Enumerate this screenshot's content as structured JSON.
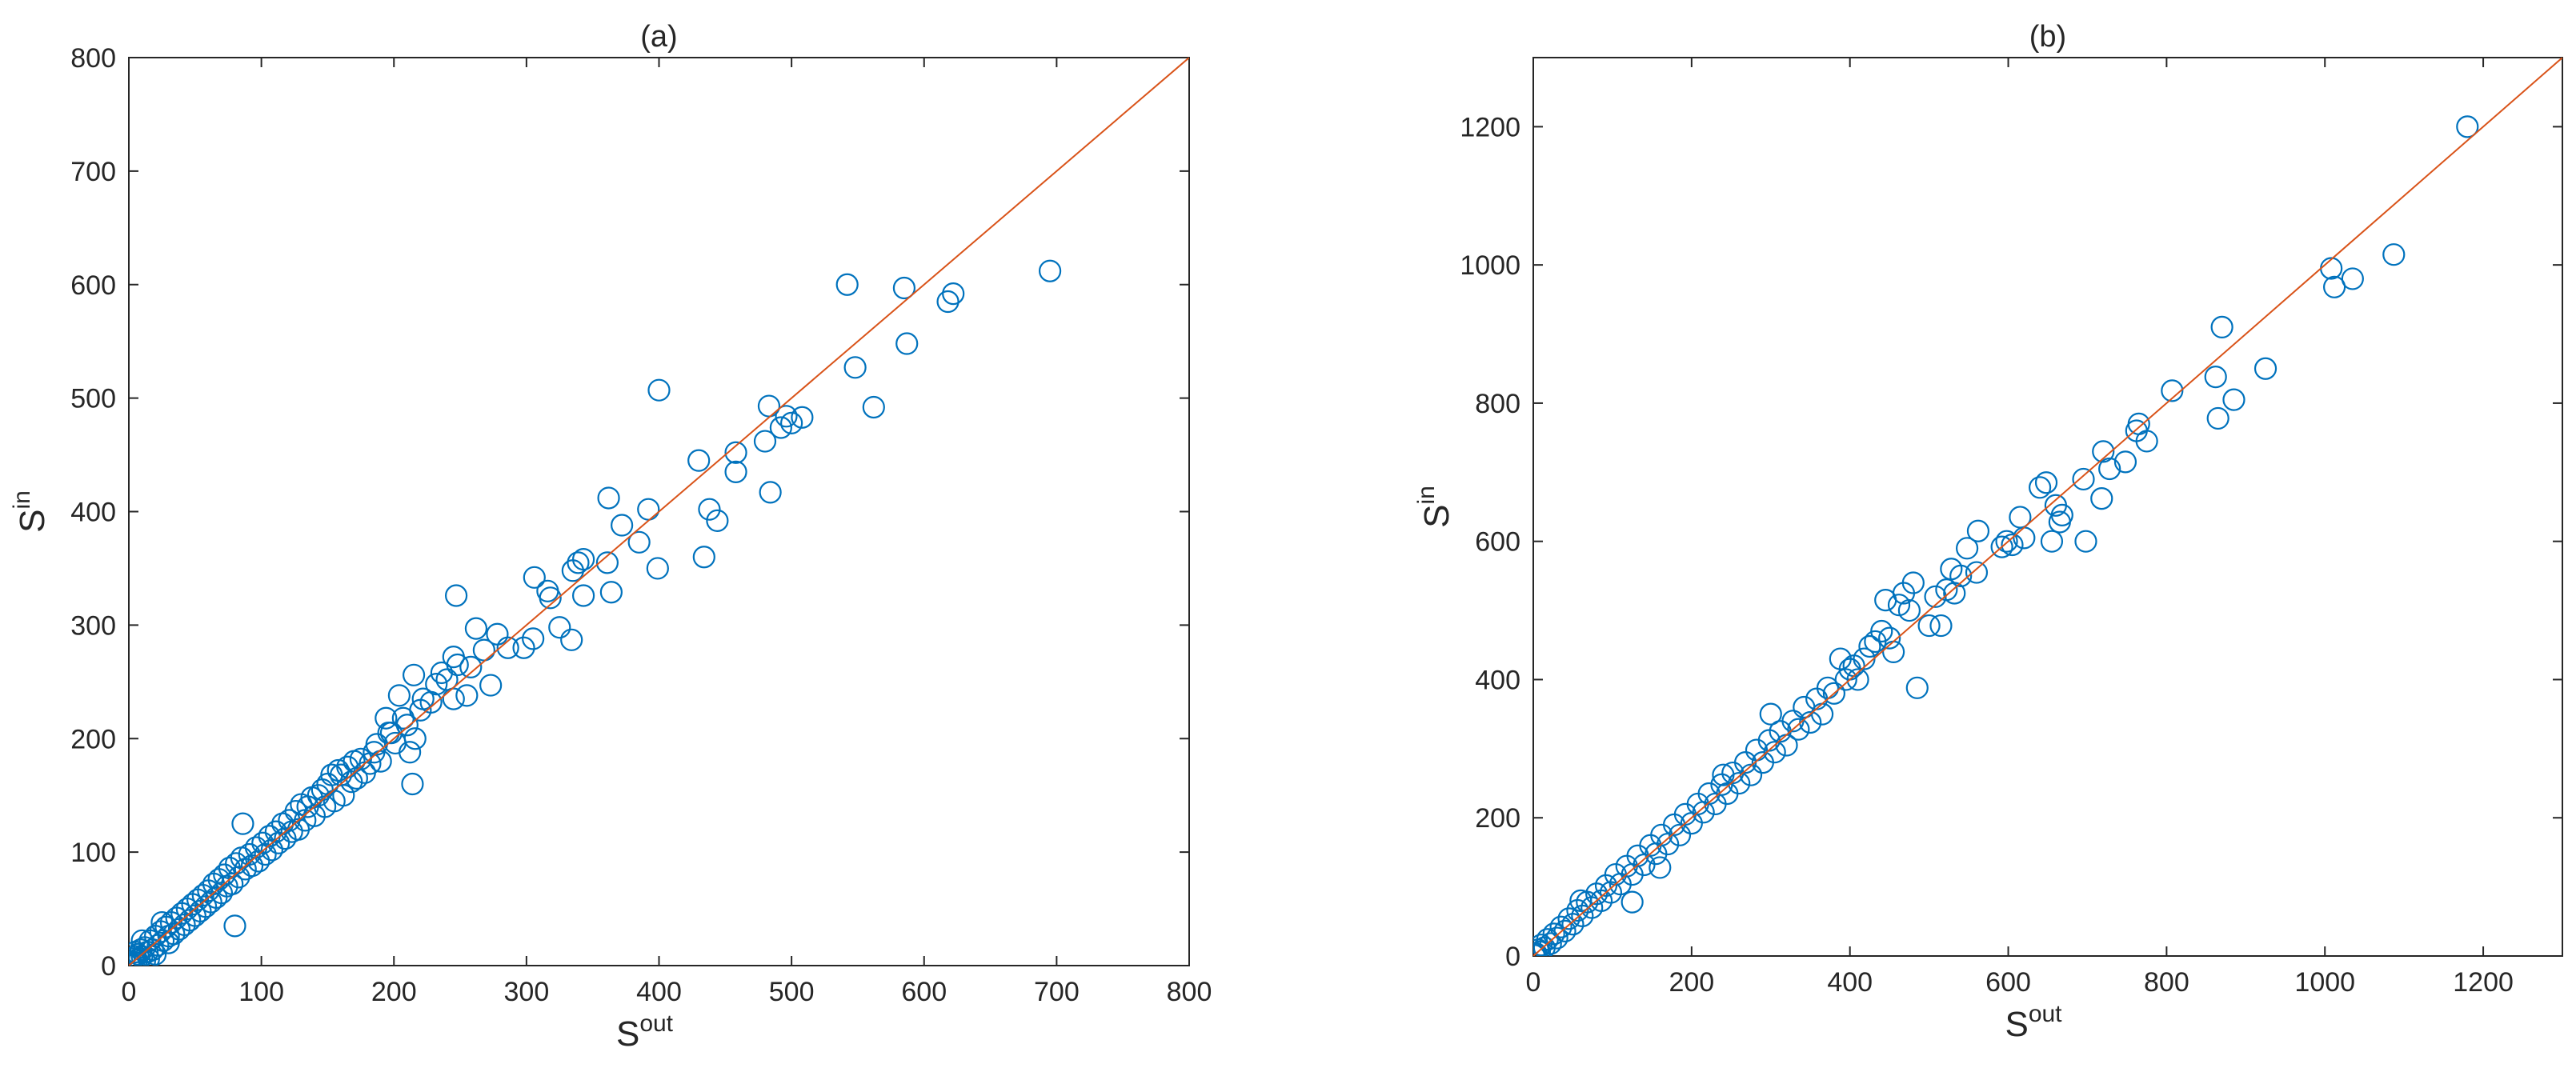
{
  "chart_data": [
    {
      "id": "a",
      "type": "scatter",
      "title": "(a)",
      "xlabel": {
        "base": "S",
        "sup": "out"
      },
      "ylabel": {
        "base": "S",
        "sup": "in"
      },
      "xlim": [
        0,
        800
      ],
      "ylim": [
        0,
        800
      ],
      "xticks": [
        0,
        100,
        200,
        300,
        400,
        500,
        600,
        700,
        800
      ],
      "yticks": [
        0,
        100,
        200,
        300,
        400,
        500,
        600,
        700,
        800
      ],
      "grid": false,
      "marker": "open-circle",
      "marker_color": "#0072BD",
      "reference_line": {
        "from": [
          0,
          0
        ],
        "to": [
          800,
          800
        ],
        "color": "#D95319"
      },
      "points": [
        [
          695,
          612
        ],
        [
          622,
          592
        ],
        [
          618,
          585
        ],
        [
          585,
          597
        ],
        [
          587,
          548
        ],
        [
          562,
          492
        ],
        [
          548,
          527
        ],
        [
          542,
          600
        ],
        [
          508,
          483
        ],
        [
          500,
          478
        ],
        [
          496,
          484
        ],
        [
          492,
          474
        ],
        [
          484,
          417
        ],
        [
          483,
          493
        ],
        [
          480,
          462
        ],
        [
          458,
          452
        ],
        [
          458,
          435
        ],
        [
          444,
          392
        ],
        [
          438,
          402
        ],
        [
          434,
          360
        ],
        [
          430,
          445
        ],
        [
          400,
          507
        ],
        [
          399,
          350
        ],
        [
          392,
          402
        ],
        [
          385,
          373
        ],
        [
          372,
          388
        ],
        [
          364,
          329
        ],
        [
          362,
          412
        ],
        [
          361,
          355
        ],
        [
          343,
          358
        ],
        [
          343,
          326
        ],
        [
          339,
          355
        ],
        [
          335,
          348
        ],
        [
          334,
          287
        ],
        [
          325,
          298
        ],
        [
          318,
          324
        ],
        [
          316,
          330
        ],
        [
          306,
          342
        ],
        [
          305,
          288
        ],
        [
          298,
          280
        ],
        [
          286,
          280
        ],
        [
          278,
          292
        ],
        [
          273,
          247
        ],
        [
          268,
          278
        ],
        [
          262,
          297
        ],
        [
          258,
          263
        ],
        [
          255,
          238
        ],
        [
          248,
          265
        ],
        [
          247,
          326
        ],
        [
          245,
          235
        ],
        [
          245,
          272
        ],
        [
          240,
          252
        ],
        [
          236,
          258
        ],
        [
          232,
          248
        ],
        [
          228,
          232
        ],
        [
          222,
          235
        ],
        [
          220,
          225
        ],
        [
          216,
          200
        ],
        [
          215,
          256
        ],
        [
          214,
          160
        ],
        [
          212,
          188
        ],
        [
          210,
          212
        ],
        [
          207,
          218
        ],
        [
          204,
          238
        ],
        [
          201,
          196
        ],
        [
          198,
          205
        ],
        [
          196,
          205
        ],
        [
          194,
          218
        ],
        [
          190,
          180
        ],
        [
          187,
          195
        ],
        [
          185,
          188
        ],
        [
          182,
          178
        ],
        [
          178,
          170
        ],
        [
          175,
          182
        ],
        [
          172,
          165
        ],
        [
          170,
          180
        ],
        [
          168,
          162
        ],
        [
          165,
          175
        ],
        [
          162,
          150
        ],
        [
          160,
          168
        ],
        [
          158,
          172
        ],
        [
          155,
          145
        ],
        [
          153,
          168
        ],
        [
          150,
          160
        ],
        [
          148,
          140
        ],
        [
          146,
          155
        ],
        [
          143,
          150
        ],
        [
          140,
          132
        ],
        [
          138,
          148
        ],
        [
          135,
          140
        ],
        [
          133,
          128
        ],
        [
          130,
          142
        ],
        [
          128,
          120
        ],
        [
          126,
          136
        ],
        [
          123,
          118
        ],
        [
          121,
          128
        ],
        [
          118,
          112
        ],
        [
          116,
          125
        ],
        [
          113,
          108
        ],
        [
          111,
          118
        ],
        [
          108,
          102
        ],
        [
          106,
          114
        ],
        [
          103,
          98
        ],
        [
          101,
          108
        ],
        [
          98,
          92
        ],
        [
          96,
          104
        ],
        [
          93,
          88
        ],
        [
          91,
          98
        ],
        [
          88,
          85
        ],
        [
          86,
          125
        ],
        [
          85,
          95
        ],
        [
          83,
          78
        ],
        [
          81,
          90
        ],
        [
          80,
          35
        ],
        [
          78,
          72
        ],
        [
          76,
          86
        ],
        [
          74,
          70
        ],
        [
          72,
          80
        ],
        [
          70,
          64
        ],
        [
          68,
          76
        ],
        [
          66,
          60
        ],
        [
          64,
          72
        ],
        [
          62,
          56
        ],
        [
          60,
          66
        ],
        [
          58,
          52
        ],
        [
          56,
          62
        ],
        [
          54,
          48
        ],
        [
          52,
          58
        ],
        [
          50,
          44
        ],
        [
          48,
          54
        ],
        [
          46,
          40
        ],
        [
          44,
          50
        ],
        [
          42,
          36
        ],
        [
          40,
          46
        ],
        [
          38,
          32
        ],
        [
          36,
          42
        ],
        [
          34,
          28
        ],
        [
          32,
          38
        ],
        [
          30,
          26
        ],
        [
          28,
          34
        ],
        [
          26,
          22
        ],
        [
          24,
          30
        ],
        [
          22,
          18
        ],
        [
          20,
          26
        ],
        [
          18,
          14
        ],
        [
          16,
          22
        ],
        [
          14,
          12
        ],
        [
          12,
          16
        ],
        [
          10,
          8
        ],
        [
          9,
          14
        ],
        [
          8,
          6
        ],
        [
          7,
          10
        ],
        [
          6,
          5
        ],
        [
          5,
          8
        ],
        [
          4,
          3
        ],
        [
          3,
          6
        ],
        [
          2,
          2
        ],
        [
          1,
          3
        ],
        [
          1,
          1
        ],
        [
          0,
          2
        ],
        [
          2,
          0
        ],
        [
          5,
          12
        ],
        [
          10,
          22
        ],
        [
          12,
          4
        ],
        [
          15,
          6
        ],
        [
          20,
          10
        ],
        [
          25,
          38
        ],
        [
          30,
          20
        ]
      ]
    },
    {
      "id": "b",
      "type": "scatter",
      "title": "(b)",
      "xlabel": {
        "base": "S",
        "sup": "out"
      },
      "ylabel": {
        "base": "S",
        "sup": "in"
      },
      "xlim": [
        0,
        1300
      ],
      "ylim": [
        0,
        1300
      ],
      "xticks": [
        0,
        200,
        400,
        600,
        800,
        1000,
        1200
      ],
      "yticks": [
        0,
        200,
        400,
        600,
        800,
        1000,
        1200
      ],
      "grid": false,
      "marker": "open-circle",
      "marker_color": "#0072BD",
      "reference_line": {
        "from": [
          0,
          0
        ],
        "to": [
          1300,
          1300
        ],
        "color": "#D95319"
      },
      "points": [
        [
          1180,
          1200
        ],
        [
          1087,
          1015
        ],
        [
          1035,
          980
        ],
        [
          1012,
          968
        ],
        [
          1008,
          995
        ],
        [
          925,
          850
        ],
        [
          885,
          805
        ],
        [
          870,
          910
        ],
        [
          865,
          778
        ],
        [
          862,
          838
        ],
        [
          807,
          818
        ],
        [
          775,
          745
        ],
        [
          765,
          770
        ],
        [
          762,
          760
        ],
        [
          748,
          715
        ],
        [
          728,
          705
        ],
        [
          720,
          730
        ],
        [
          718,
          662
        ],
        [
          695,
          690
        ],
        [
          698,
          600
        ],
        [
          668,
          638
        ],
        [
          665,
          628
        ],
        [
          660,
          652
        ],
        [
          655,
          600
        ],
        [
          648,
          685
        ],
        [
          640,
          678
        ],
        [
          620,
          605
        ],
        [
          615,
          635
        ],
        [
          605,
          595
        ],
        [
          598,
          600
        ],
        [
          592,
          592
        ],
        [
          562,
          615
        ],
        [
          560,
          555
        ],
        [
          548,
          590
        ],
        [
          540,
          550
        ],
        [
          532,
          525
        ],
        [
          528,
          560
        ],
        [
          522,
          530
        ],
        [
          515,
          478
        ],
        [
          508,
          520
        ],
        [
          500,
          478
        ],
        [
          485,
          388
        ],
        [
          480,
          540
        ],
        [
          475,
          500
        ],
        [
          468,
          525
        ],
        [
          462,
          508
        ],
        [
          455,
          440
        ],
        [
          450,
          460
        ],
        [
          445,
          515
        ],
        [
          440,
          470
        ],
        [
          432,
          455
        ],
        [
          425,
          448
        ],
        [
          418,
          430
        ],
        [
          410,
          400
        ],
        [
          405,
          420
        ],
        [
          400,
          415
        ],
        [
          395,
          400
        ],
        [
          388,
          430
        ],
        [
          380,
          380
        ],
        [
          372,
          388
        ],
        [
          365,
          350
        ],
        [
          358,
          372
        ],
        [
          350,
          338
        ],
        [
          342,
          360
        ],
        [
          335,
          328
        ],
        [
          328,
          340
        ],
        [
          320,
          305
        ],
        [
          312,
          325
        ],
        [
          305,
          295
        ],
        [
          298,
          312
        ],
        [
          290,
          280
        ],
        [
          282,
          298
        ],
        [
          275,
          262
        ],
        [
          268,
          280
        ],
        [
          260,
          250
        ],
        [
          252,
          265
        ],
        [
          245,
          235
        ],
        [
          238,
          248
        ],
        [
          230,
          220
        ],
        [
          222,
          235
        ],
        [
          215,
          208
        ],
        [
          208,
          220
        ],
        [
          200,
          192
        ],
        [
          192,
          205
        ],
        [
          185,
          175
        ],
        [
          178,
          190
        ],
        [
          170,
          162
        ],
        [
          162,
          175
        ],
        [
          155,
          148
        ],
        [
          148,
          160
        ],
        [
          140,
          132
        ],
        [
          132,
          145
        ],
        [
          125,
          118
        ],
        [
          118,
          130
        ],
        [
          110,
          104
        ],
        [
          104,
          118
        ],
        [
          98,
          92
        ],
        [
          92,
          102
        ],
        [
          86,
          80
        ],
        [
          80,
          90
        ],
        [
          74,
          70
        ],
        [
          68,
          78
        ],
        [
          62,
          58
        ],
        [
          56,
          66
        ],
        [
          50,
          46
        ],
        [
          45,
          54
        ],
        [
          40,
          36
        ],
        [
          35,
          42
        ],
        [
          30,
          26
        ],
        [
          26,
          32
        ],
        [
          22,
          18
        ],
        [
          18,
          24
        ],
        [
          14,
          12
        ],
        [
          10,
          16
        ],
        [
          8,
          6
        ],
        [
          6,
          9
        ],
        [
          4,
          3
        ],
        [
          2,
          4
        ],
        [
          1,
          1
        ],
        [
          125,
          78
        ],
        [
          160,
          128
        ],
        [
          240,
          262
        ],
        [
          300,
          350
        ],
        [
          60,
          80
        ]
      ]
    }
  ]
}
